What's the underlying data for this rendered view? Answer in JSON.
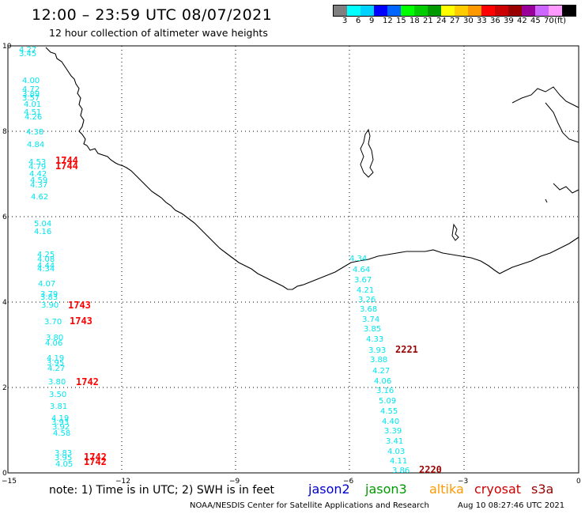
{
  "header": {
    "title": "12:00 – 23:59 UTC 08/07/2021",
    "subtitle": "12 hour collection of altimeter wave heights"
  },
  "color_scale": {
    "colors": [
      "#7f7f7f",
      "#00ffff",
      "#00d2ff",
      "#0000ff",
      "#0064ff",
      "#00ff00",
      "#00cc00",
      "#009900",
      "#ffff00",
      "#ffcc00",
      "#ff9900",
      "#ff0000",
      "#cc0000",
      "#990000",
      "#990099",
      "#cc66ff",
      "#ff99ff",
      "#000000"
    ],
    "labels": [
      "3",
      "6",
      "9",
      "12",
      "15",
      "18",
      "21",
      "24",
      "27",
      "30",
      "33",
      "36",
      "39",
      "42",
      "45",
      "70",
      "(ft)"
    ]
  },
  "axes": {
    "x_ticks": [
      "−15",
      "−12",
      "−9",
      "−6",
      "−3",
      "0"
    ],
    "y_ticks": [
      "0",
      "2",
      "4",
      "6",
      "8",
      "10"
    ]
  },
  "left_track": {
    "heights": [
      "4.27",
      "3.45",
      "4.00",
      "4.72",
      "3.89",
      "3.57",
      "4.01",
      "4.51",
      "4.26",
      "4.38",
      "4.84",
      "4.53",
      "4.79",
      "4.42",
      "4.59",
      "4.37",
      "4.62",
      "5.04",
      "4.16",
      "4.25",
      "4.08",
      "4.44",
      "4.34",
      "4.07",
      "3.79",
      "3.83",
      "3.90",
      "3.70",
      "3.80",
      "4.06",
      "4.19",
      "3.95",
      "4.27",
      "3.80",
      "3.50",
      "3.81",
      "4.19",
      "3.93",
      "3.92",
      "4.58",
      "3.83",
      "3.95",
      "4.05"
    ],
    "passes": [
      {
        "label": "1744",
        "color": "#ff0000"
      },
      {
        "label": "1744",
        "color": "#ff0000"
      },
      {
        "label": "1743",
        "color": "#ff0000"
      },
      {
        "label": "1743",
        "color": "#ff0000"
      },
      {
        "label": "1742",
        "color": "#ff0000"
      },
      {
        "label": "1742",
        "color": "#ff0000"
      },
      {
        "label": "1742",
        "color": "#ff0000"
      }
    ]
  },
  "right_track": {
    "heights": [
      "4.34",
      "4.64",
      "3.67",
      "4.21",
      "3.26",
      "3.68",
      "3.74",
      "3.85",
      "4.33",
      "3.93",
      "3.88",
      "4.27",
      "4.06",
      "3.16",
      "5.09",
      "4.55",
      "4.40",
      "3.39",
      "3.41",
      "4.03",
      "4.11",
      "3.86"
    ],
    "passes": [
      {
        "label": "2221",
        "color": "#990000"
      },
      {
        "label": "2220",
        "color": "#990000"
      }
    ]
  },
  "legend": {
    "note": "note:  1) Time is in UTC;  2) SWH is in feet",
    "satellites": [
      {
        "name": "jason2",
        "color": "#0000cc"
      },
      {
        "name": "jason3",
        "color": "#009900"
      },
      {
        "name": "altika",
        "color": "#ff9900"
      },
      {
        "name": "cryosat",
        "color": "#cc0000"
      },
      {
        "name": "s3a",
        "color": "#990000"
      }
    ]
  },
  "footer": {
    "credit": "NOAA/NESDIS Center for Satellite Applications and Research",
    "timestamp": "Aug 10 08:27:46 UTC 2021"
  }
}
